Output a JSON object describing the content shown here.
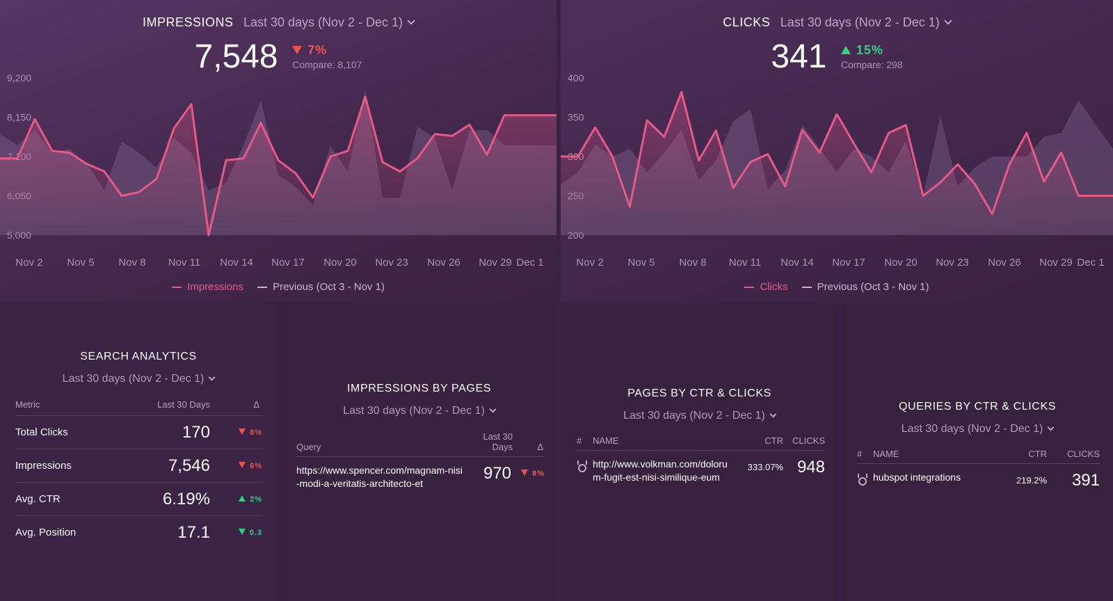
{
  "impressions_widget": {
    "title": "IMPRESSIONS",
    "date_range": "Last 30 days (Nov 2 - Dec 1)",
    "value": "7,548",
    "delta": "7%",
    "compare": "Compare: 8,107",
    "legend_current": "Impressions",
    "legend_previous": "Previous (Oct 3 - Nov 1)"
  },
  "clicks_widget": {
    "title": "CLICKS",
    "date_range": "Last 30 days (Nov 2 - Dec 1)",
    "value": "341",
    "delta": "15%",
    "compare": "Compare: 298",
    "legend_current": "Clicks",
    "legend_previous": "Previous (Oct 3 - Nov 1)"
  },
  "colors": {
    "current_line": "#e85a86",
    "previous_area": "#8a6f98",
    "down": "#ef5350",
    "up": "#35d07f"
  },
  "chart_data": [
    {
      "type": "line",
      "title": "IMPRESSIONS",
      "x_tick_labels": [
        "Nov 2",
        "Nov 5",
        "Nov 8",
        "Nov 11",
        "Nov 14",
        "Nov 17",
        "Nov 20",
        "Nov 23",
        "Nov 26",
        "Nov 29",
        "Dec 1"
      ],
      "y_tick_labels": [
        "9,200",
        "8,150",
        "7,100",
        "6,050",
        "5,000"
      ],
      "ylim": [
        5000,
        9200
      ],
      "series": [
        {
          "name": "Impressions",
          "values": [
            7050,
            7050,
            8100,
            7250,
            7200,
            6900,
            6700,
            6050,
            6150,
            6500,
            7850,
            8500,
            5000,
            7000,
            7050,
            8000,
            7000,
            6650,
            6000,
            7100,
            7250,
            8700,
            6950,
            6700,
            7050,
            7700,
            7650,
            7950,
            7150,
            8200,
            8200,
            8200,
            8200
          ]
        },
        {
          "name": "Previous (Oct 3 - Nov 1)",
          "values": [
            7700,
            7400,
            7800,
            7200,
            7300,
            6900,
            6200,
            7500,
            7200,
            6800,
            7600,
            7200,
            6200,
            6400,
            7400,
            8600,
            6600,
            6300,
            5800,
            7400,
            6700,
            8900,
            6000,
            6000,
            7900,
            7600,
            6200,
            7800,
            7800,
            7400,
            7400,
            7400,
            7400
          ]
        }
      ]
    },
    {
      "type": "line",
      "title": "CLICKS",
      "x_tick_labels": [
        "Nov 2",
        "Nov 5",
        "Nov 8",
        "Nov 11",
        "Nov 14",
        "Nov 17",
        "Nov 20",
        "Nov 23",
        "Nov 26",
        "Nov 29",
        "Dec 1"
      ],
      "y_tick_labels": [
        "400",
        "350",
        "300",
        "250",
        "200"
      ],
      "ylim": [
        200,
        400
      ],
      "series": [
        {
          "name": "Clicks",
          "values": [
            300,
            300,
            337,
            300,
            236,
            346,
            325,
            382,
            295,
            333,
            260,
            293,
            303,
            262,
            334,
            305,
            354,
            316,
            280,
            330,
            340,
            250,
            267,
            290,
            265,
            227,
            290,
            330,
            268,
            305,
            250,
            250,
            250
          ]
        },
        {
          "name": "Previous (Oct 3 - Nov 1)",
          "values": [
            265,
            280,
            315,
            300,
            310,
            280,
            305,
            334,
            270,
            295,
            345,
            360,
            258,
            282,
            340,
            310,
            280,
            310,
            300,
            280,
            320,
            250,
            352,
            262,
            286,
            300,
            300,
            300,
            325,
            330,
            372,
            340,
            310
          ]
        }
      ]
    }
  ],
  "search_analytics": {
    "title": "SEARCH ANALYTICS",
    "date_range": "Last 30 days (Nov 2 - Dec 1)",
    "col_metric": "Metric",
    "col_period": "Last 30 Days",
    "col_delta": "Δ",
    "rows": [
      {
        "label": "Total Clicks",
        "value": "170",
        "delta": "8%",
        "dir": "down"
      },
      {
        "label": "Impressions",
        "value": "7,546",
        "delta": "6%",
        "dir": "down"
      },
      {
        "label": "Avg. CTR",
        "value": "6.19%",
        "delta": "2%",
        "dir": "up"
      },
      {
        "label": "Avg. Position",
        "value": "17.1",
        "delta": "0.3",
        "dir": "down-green"
      }
    ]
  },
  "impressions_by_pages": {
    "title": "IMPRESSIONS BY PAGES",
    "date_range": "Last 30 days (Nov 2 - Dec 1)",
    "col_query": "Query",
    "col_period_1": "Last 30",
    "col_period_2": "Days",
    "col_delta": "Δ",
    "row": {
      "query": "https://www.spencer.com/magnam-nisi-modi-a-veritatis-architecto-et",
      "value": "970",
      "delta": "8%"
    }
  },
  "pages_by_ctr": {
    "title": "PAGES BY CTR & CLICKS",
    "date_range": "Last 30 days (Nov 2 - Dec 1)",
    "col_num": "#",
    "col_name": "NAME",
    "col_ctr": "CTR",
    "col_clicks": "CLICKS",
    "row": {
      "name": "http://www.volkman.com/dolorum-fugit-est-nisi-similique-eum",
      "ctr": "333.07%",
      "clicks": "948"
    }
  },
  "queries_by_ctr": {
    "title": "QUERIES BY CTR & CLICKS",
    "date_range": "Last 30 days (Nov 2 - Dec 1)",
    "col_num": "#",
    "col_name": "NAME",
    "col_ctr": "CTR",
    "col_clicks": "CLICKS",
    "row": {
      "name": "hubspot integrations",
      "ctr": "219.2%",
      "clicks": "391"
    }
  }
}
